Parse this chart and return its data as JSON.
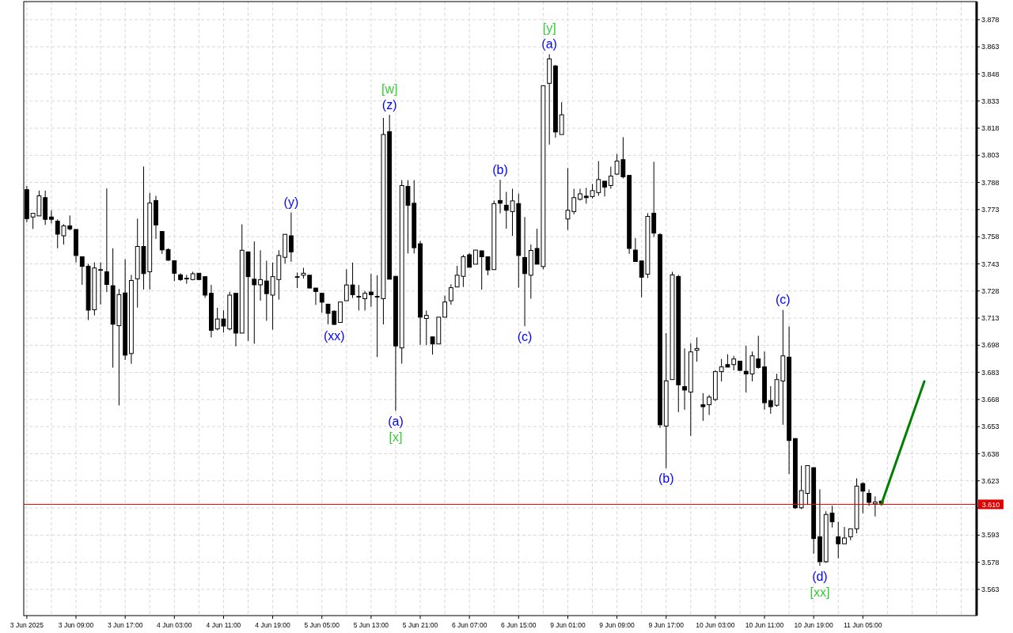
{
  "chart_data": {
    "type": "candlestick",
    "categories": [
      "3 Jun 2025",
      null,
      null,
      null,
      null,
      null,
      null,
      null,
      "3 Jun 09:00",
      null,
      null,
      null,
      null,
      null,
      null,
      null,
      "3 Jun 17:00",
      null,
      null,
      null,
      null,
      null,
      null,
      null,
      "4 Jun 03:00",
      null,
      null,
      null,
      null,
      null,
      null,
      null,
      "4 Jun 11:00",
      null,
      null,
      null,
      null,
      null,
      null,
      null,
      "4 Jun 19:00",
      null,
      null,
      null,
      null,
      null,
      null,
      null,
      "5 Jun 05:00",
      null,
      null,
      null,
      null,
      null,
      null,
      null,
      "5 Jun 13:00",
      null,
      null,
      null,
      null,
      null,
      null,
      null,
      "5 Jun 21:00",
      null,
      null,
      null,
      null,
      null,
      null,
      null,
      "6 Jun 07:00",
      null,
      null,
      null,
      null,
      null,
      null,
      null,
      "6 Jun 15:00",
      null,
      null,
      null,
      null,
      null,
      null,
      null,
      "9 Jun 01:00",
      null,
      null,
      null,
      null,
      null,
      null,
      null,
      "9 Jun 09:00",
      null,
      null,
      null,
      null,
      null,
      null,
      null,
      "9 Jun 17:00",
      null,
      null,
      null,
      null,
      null,
      null,
      null,
      "10 Jun 03:00",
      null,
      null,
      null,
      null,
      null,
      null,
      null,
      "10 Jun 11:00",
      null,
      null,
      null,
      null,
      null,
      null,
      null,
      "10 Jun 19:00",
      null,
      null,
      null,
      null,
      null,
      null,
      null,
      "11 Jun 05:00",
      null,
      null,
      null,
      null,
      null,
      null,
      null,
      null,
      null,
      null,
      null,
      null,
      null,
      null,
      null,
      null,
      null,
      null
    ],
    "ohlc": [
      [
        3.784,
        3.786,
        3.766,
        3.768
      ],
      [
        3.7689,
        3.7709,
        3.7623,
        3.7709
      ],
      [
        3.7695,
        3.7835,
        3.7695,
        3.7806
      ],
      [
        3.7796,
        3.7835,
        3.7645,
        3.7676
      ],
      [
        3.7689,
        3.7727,
        3.7654,
        3.7676
      ],
      [
        3.7666,
        3.7676,
        3.7516,
        3.7594
      ],
      [
        3.7585,
        3.7649,
        3.7537,
        3.764
      ],
      [
        3.764,
        3.7697,
        3.7614,
        3.7623
      ],
      [
        3.762,
        3.762,
        3.7438,
        3.7476
      ],
      [
        3.7469,
        3.7469,
        3.7314,
        3.7416
      ],
      [
        3.7417,
        3.743,
        3.7119,
        3.7174
      ],
      [
        3.7176,
        3.7438,
        3.7145,
        3.7407
      ],
      [
        3.7398,
        3.7438,
        3.7205,
        3.7398
      ],
      [
        3.7386,
        3.7847,
        3.7274,
        3.7316
      ],
      [
        3.7309,
        3.7516,
        3.6856,
        3.7096
      ],
      [
        3.7088,
        3.7291,
        3.6647,
        3.726
      ],
      [
        3.7269,
        3.7455,
        3.6898,
        3.6925
      ],
      [
        3.6934,
        3.7369,
        3.6877,
        3.7338
      ],
      [
        3.7347,
        3.768,
        3.7188,
        3.7526
      ],
      [
        3.7526,
        3.7968,
        3.7288,
        3.7376
      ],
      [
        3.7386,
        3.7822,
        3.7288,
        3.7766
      ],
      [
        3.778,
        3.7806,
        3.7568,
        3.7645
      ],
      [
        3.7609,
        3.7609,
        3.7485,
        3.7507
      ],
      [
        3.7509,
        3.7516,
        3.7447,
        3.745
      ],
      [
        3.7447,
        3.7447,
        3.7335,
        3.7378
      ],
      [
        3.7369,
        3.7378,
        3.7335,
        3.7343
      ],
      [
        3.735,
        3.7369,
        3.732,
        3.7349
      ],
      [
        3.7343,
        3.7386,
        3.7339,
        3.7375
      ],
      [
        3.7378,
        3.7378,
        3.7343,
        3.7343
      ],
      [
        3.7359,
        3.7359,
        3.7242,
        3.7257
      ],
      [
        3.7267,
        3.7314,
        3.7023,
        3.7062
      ],
      [
        3.707,
        3.7187,
        3.7062,
        3.7125
      ],
      [
        3.7125,
        3.7173,
        3.705,
        3.7086
      ],
      [
        3.707,
        3.7275,
        3.7062,
        3.7257
      ],
      [
        3.7267,
        3.7267,
        3.6974,
        3.7047
      ],
      [
        3.7047,
        3.7648,
        3.7047,
        3.7505
      ],
      [
        3.7496,
        3.7496,
        3.7004,
        3.7359
      ],
      [
        3.7345,
        3.7554,
        3.6988,
        3.7314
      ],
      [
        3.7314,
        3.7505,
        3.7226,
        3.7343
      ],
      [
        3.7335,
        3.7447,
        3.7115,
        3.7265
      ],
      [
        3.7257,
        3.7437,
        3.7066,
        3.7359
      ],
      [
        3.7343,
        3.7505,
        3.7232,
        3.7476
      ],
      [
        3.7466,
        3.7593,
        3.7431,
        3.7593
      ],
      [
        3.7585,
        3.7714,
        3.7441,
        3.7496
      ],
      [
        3.7359,
        3.7382,
        3.7296,
        3.7359
      ],
      [
        3.7367,
        3.7408,
        3.7349,
        3.7378
      ],
      [
        3.7367,
        3.7367,
        3.7296,
        3.7296
      ],
      [
        3.7296,
        3.7296,
        3.7203,
        3.7277
      ],
      [
        3.7267,
        3.7267,
        3.716,
        3.7218
      ],
      [
        3.7207,
        3.7207,
        3.7095,
        3.7156
      ],
      [
        3.7168,
        3.7173,
        3.7091,
        3.7095
      ],
      [
        3.7106,
        3.7219,
        3.7106,
        3.7219
      ],
      [
        3.7226,
        3.74,
        3.7226,
        3.7313
      ],
      [
        3.7313,
        3.7437,
        3.7241,
        3.7259
      ],
      [
        3.725,
        3.7313,
        3.7172,
        3.7248
      ],
      [
        3.7237,
        3.728,
        3.7172,
        3.7267
      ],
      [
        3.7274,
        3.7374,
        3.7193,
        3.7259
      ],
      [
        3.725,
        3.7367,
        3.6915,
        3.7248
      ],
      [
        3.7237,
        3.8237,
        3.7095,
        3.8145
      ],
      [
        3.8161,
        3.8254,
        3.7345,
        3.7345
      ],
      [
        3.7361,
        3.7361,
        3.6617,
        3.6976
      ],
      [
        3.6965,
        3.7893,
        3.6878,
        3.7863
      ],
      [
        3.7858,
        3.7893,
        3.7487,
        3.7754
      ],
      [
        3.7765,
        3.7893,
        3.7487,
        3.7519
      ],
      [
        3.7541,
        3.7556,
        3.6982,
        3.7135
      ],
      [
        3.7128,
        3.7172,
        3.698,
        3.7145
      ],
      [
        3.7026,
        3.7026,
        3.6928,
        3.6987
      ],
      [
        3.6987,
        3.7135,
        3.6987,
        3.7135
      ],
      [
        3.7135,
        3.7254,
        3.7135,
        3.7219
      ],
      [
        3.7226,
        3.7317,
        3.7204,
        3.7298
      ],
      [
        3.7302,
        3.7419,
        3.7302,
        3.7367
      ],
      [
        3.7361,
        3.748,
        3.7302,
        3.7469
      ],
      [
        3.748,
        3.7489,
        3.7411,
        3.7411
      ],
      [
        3.7428,
        3.7506,
        3.7428,
        3.7506
      ],
      [
        3.7502,
        3.7502,
        3.7287,
        3.7469
      ],
      [
        3.7469,
        3.7469,
        3.7367,
        3.7396
      ],
      [
        3.7398,
        3.778,
        3.7398,
        3.7763
      ],
      [
        3.778,
        3.7895,
        3.7709,
        3.7765
      ],
      [
        3.7754,
        3.7828,
        3.7624,
        3.7726
      ],
      [
        3.7719,
        3.7845,
        3.7585,
        3.7778
      ],
      [
        3.7763,
        3.7819,
        3.7298,
        3.7476
      ],
      [
        3.7465,
        3.7689,
        3.7085,
        3.7376
      ],
      [
        3.7367,
        3.7537,
        3.7237,
        3.7504
      ],
      [
        3.7515,
        3.7624,
        3.7428,
        3.7428
      ],
      [
        3.7415,
        3.8415,
        3.74,
        3.8415
      ],
      [
        3.8428,
        3.8589,
        3.8089,
        3.8563
      ],
      [
        3.8524,
        3.853,
        3.8128,
        3.8159
      ],
      [
        3.8145,
        3.8324,
        3.8145,
        3.8254
      ],
      [
        3.7678,
        3.7959,
        3.7617,
        3.7726
      ],
      [
        3.7719,
        3.7845,
        3.7704,
        3.7796
      ],
      [
        3.7787,
        3.7845,
        3.778,
        3.7817
      ],
      [
        3.7804,
        3.785,
        3.7763,
        3.7796
      ],
      [
        3.7802,
        3.7872,
        3.7791,
        3.7835
      ],
      [
        3.7824,
        3.7998,
        3.7806,
        3.7896
      ],
      [
        3.7887,
        3.7887,
        3.7802,
        3.7854
      ],
      [
        3.7863,
        3.7967,
        3.7845,
        3.7915
      ],
      [
        3.7926,
        3.8037,
        3.7922,
        3.7998
      ],
      [
        3.8006,
        3.813,
        3.7902,
        3.7911
      ],
      [
        3.7919,
        3.7919,
        3.7485,
        3.7515
      ],
      [
        3.7506,
        3.7572,
        3.7443,
        3.7443
      ],
      [
        3.7446,
        3.7446,
        3.7245,
        3.7356
      ],
      [
        3.7373,
        3.771,
        3.7351,
        3.7692
      ],
      [
        3.771,
        3.7994,
        3.7578,
        3.76
      ],
      [
        3.7592,
        3.76,
        3.6523,
        3.654
      ],
      [
        3.6533,
        3.7047,
        3.63,
        3.6783
      ],
      [
        3.679,
        3.7386,
        3.679,
        3.7369
      ],
      [
        3.736,
        3.7369,
        3.661,
        3.6761
      ],
      [
        3.6751,
        3.6962,
        3.6623,
        3.6732
      ],
      [
        3.6721,
        3.6991,
        3.6479,
        3.6943
      ],
      [
        3.6952,
        3.7023,
        3.6889,
        3.6962
      ],
      [
        3.6651,
        3.6715,
        3.6562,
        3.664
      ],
      [
        3.6651,
        3.6705,
        3.6594,
        3.6693
      ],
      [
        3.668,
        3.6841,
        3.6671,
        3.6834
      ],
      [
        3.6834,
        3.6904,
        3.678,
        3.686
      ],
      [
        3.6873,
        3.693,
        3.6859,
        3.6859
      ],
      [
        3.6873,
        3.6921,
        3.6841,
        3.6904
      ],
      [
        3.6892,
        3.6892,
        3.6836,
        3.6841
      ],
      [
        3.6836,
        3.6977,
        3.6718,
        3.6821
      ],
      [
        3.6821,
        3.6945,
        3.678,
        3.6921
      ],
      [
        3.6904,
        3.7032,
        3.685,
        3.6857
      ],
      [
        3.686,
        3.6945,
        3.6623,
        3.6662
      ],
      [
        3.6674,
        3.6753,
        3.6601,
        3.664
      ],
      [
        3.6648,
        3.6822,
        3.664,
        3.679
      ],
      [
        3.6782,
        3.7175,
        3.654,
        3.6921
      ],
      [
        3.6914,
        3.7084,
        3.6268,
        3.6453
      ],
      [
        3.6464,
        3.6464,
        3.6074,
        3.6081
      ],
      [
        3.6081,
        3.6314,
        3.6074,
        3.6176
      ],
      [
        3.6161,
        3.6314,
        3.6096,
        3.6314
      ],
      [
        3.6303,
        3.6303,
        3.5827,
        3.5911
      ],
      [
        3.5921,
        3.6183,
        3.5761,
        3.5783
      ],
      [
        3.5783,
        3.6062,
        3.5776,
        3.6044
      ],
      [
        3.6052,
        3.6092,
        3.5972,
        3.6004
      ],
      [
        3.5921,
        3.6004,
        3.5802,
        3.5882
      ],
      [
        3.5882,
        3.5975,
        3.5882,
        3.5914
      ],
      [
        3.5921,
        3.5965,
        3.5902,
        3.5965
      ],
      [
        3.5965,
        3.6244,
        3.594,
        3.6201
      ],
      [
        3.6215,
        3.6223,
        3.6051,
        3.6173
      ],
      [
        3.6161,
        3.6183,
        3.6092,
        3.6111
      ],
      [
        3.6103,
        3.6144,
        3.6033,
        3.6113
      ],
      [
        3.6118,
        3.6118,
        3.6101,
        3.6106
      ],
      null,
      null,
      null,
      null,
      null,
      null,
      null,
      null,
      null,
      null,
      null,
      null,
      null,
      null,
      null
    ],
    "series": [
      {
        "type": "line",
        "color": "#008000",
        "values": [
          null,
          null,
          null,
          null,
          null,
          null,
          null,
          null,
          null,
          null,
          null,
          null,
          null,
          null,
          null,
          null,
          null,
          null,
          null,
          null,
          null,
          null,
          null,
          null,
          null,
          null,
          null,
          null,
          null,
          null,
          null,
          null,
          null,
          null,
          null,
          null,
          null,
          null,
          null,
          null,
          null,
          null,
          null,
          null,
          null,
          null,
          null,
          null,
          null,
          null,
          null,
          null,
          null,
          null,
          null,
          null,
          null,
          null,
          null,
          null,
          null,
          null,
          null,
          null,
          null,
          null,
          null,
          null,
          null,
          null,
          null,
          null,
          null,
          null,
          null,
          null,
          null,
          null,
          null,
          null,
          null,
          null,
          null,
          null,
          null,
          null,
          null,
          null,
          null,
          null,
          null,
          null,
          null,
          null,
          null,
          null,
          null,
          null,
          null,
          null,
          null,
          null,
          null,
          null,
          null,
          null,
          null,
          null,
          null,
          null,
          null,
          null,
          null,
          null,
          null,
          null,
          null,
          null,
          null,
          null,
          null,
          null,
          null,
          null,
          null,
          null,
          null,
          null,
          null,
          null,
          null,
          null,
          null,
          null,
          null,
          null,
          null,
          null,
          null,
          3.61,
          null,
          null,
          null,
          null,
          null,
          null,
          3.678,
          null,
          null,
          null,
          null,
          null,
          null,
          null,
          null
        ]
      }
    ],
    "ylim": [
      3.5485,
      3.888
    ],
    "yticks": [
      3.563,
      3.578,
      3.593,
      {
        "value": 3.608,
        "label": null
      },
      3.623,
      3.638,
      3.653,
      3.668,
      3.683,
      3.698,
      3.713,
      3.728,
      3.743,
      3.758,
      3.773,
      3.788,
      3.803,
      3.818,
      3.833,
      3.848,
      3.863,
      3.878
    ],
    "grid": true,
    "ref_lines": [
      {
        "axis": "y",
        "value": 3.61,
        "label": "3.610",
        "color": "#e00000"
      }
    ],
    "annotations": [
      {
        "text": "(y)",
        "y": 3.7714
      },
      {
        "text": "(xx)",
        "y": 3.7091
      },
      {
        "text": "(z)",
        "y": 3.8254
      },
      {
        "text": "[w]",
        "y": 3.8254
      },
      {
        "text": "(a)",
        "y": 3.6617
      },
      {
        "text": "[x]",
        "y": 3.6617
      },
      {
        "text": "(b)",
        "y": 3.7895
      },
      {
        "text": "(c)",
        "y": 3.7085
      },
      {
        "text": "(a)",
        "y": 3.8589
      },
      {
        "text": "[y]",
        "y": 3.8589
      },
      {
        "text": "(b)",
        "y": 3.63
      },
      {
        "text": "(c)",
        "y": 3.7175
      },
      {
        "text": "(d)",
        "y": 3.5761
      },
      {
        "text": "[xx]",
        "y": 3.5761
      }
    ]
  }
}
